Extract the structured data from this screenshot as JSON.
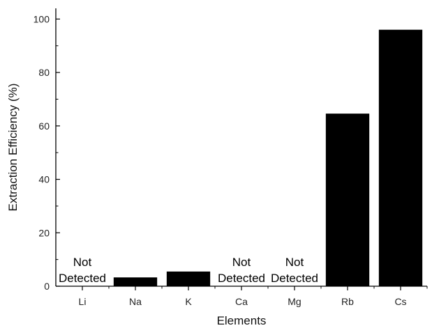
{
  "chart_data": {
    "type": "bar",
    "title": "",
    "xlabel": "Elements",
    "ylabel": "Extraction Efficiency (%)",
    "categories": [
      "Li",
      "Na",
      "K",
      "Ca",
      "Mg",
      "Rb",
      "Cs"
    ],
    "values": [
      null,
      3.3,
      5.5,
      null,
      null,
      64.6,
      96.0
    ],
    "ylim": [
      0,
      104
    ],
    "yticks": [
      0,
      20,
      40,
      60,
      80,
      100
    ],
    "grid": false,
    "bar_color": "#000000",
    "annotations": [
      {
        "category": "Li",
        "lines": [
          "Not",
          "Detected"
        ]
      },
      {
        "category": "Ca",
        "lines": [
          "Not",
          "Detected"
        ]
      },
      {
        "category": "Mg",
        "lines": [
          "Not",
          "Detected"
        ]
      }
    ]
  }
}
